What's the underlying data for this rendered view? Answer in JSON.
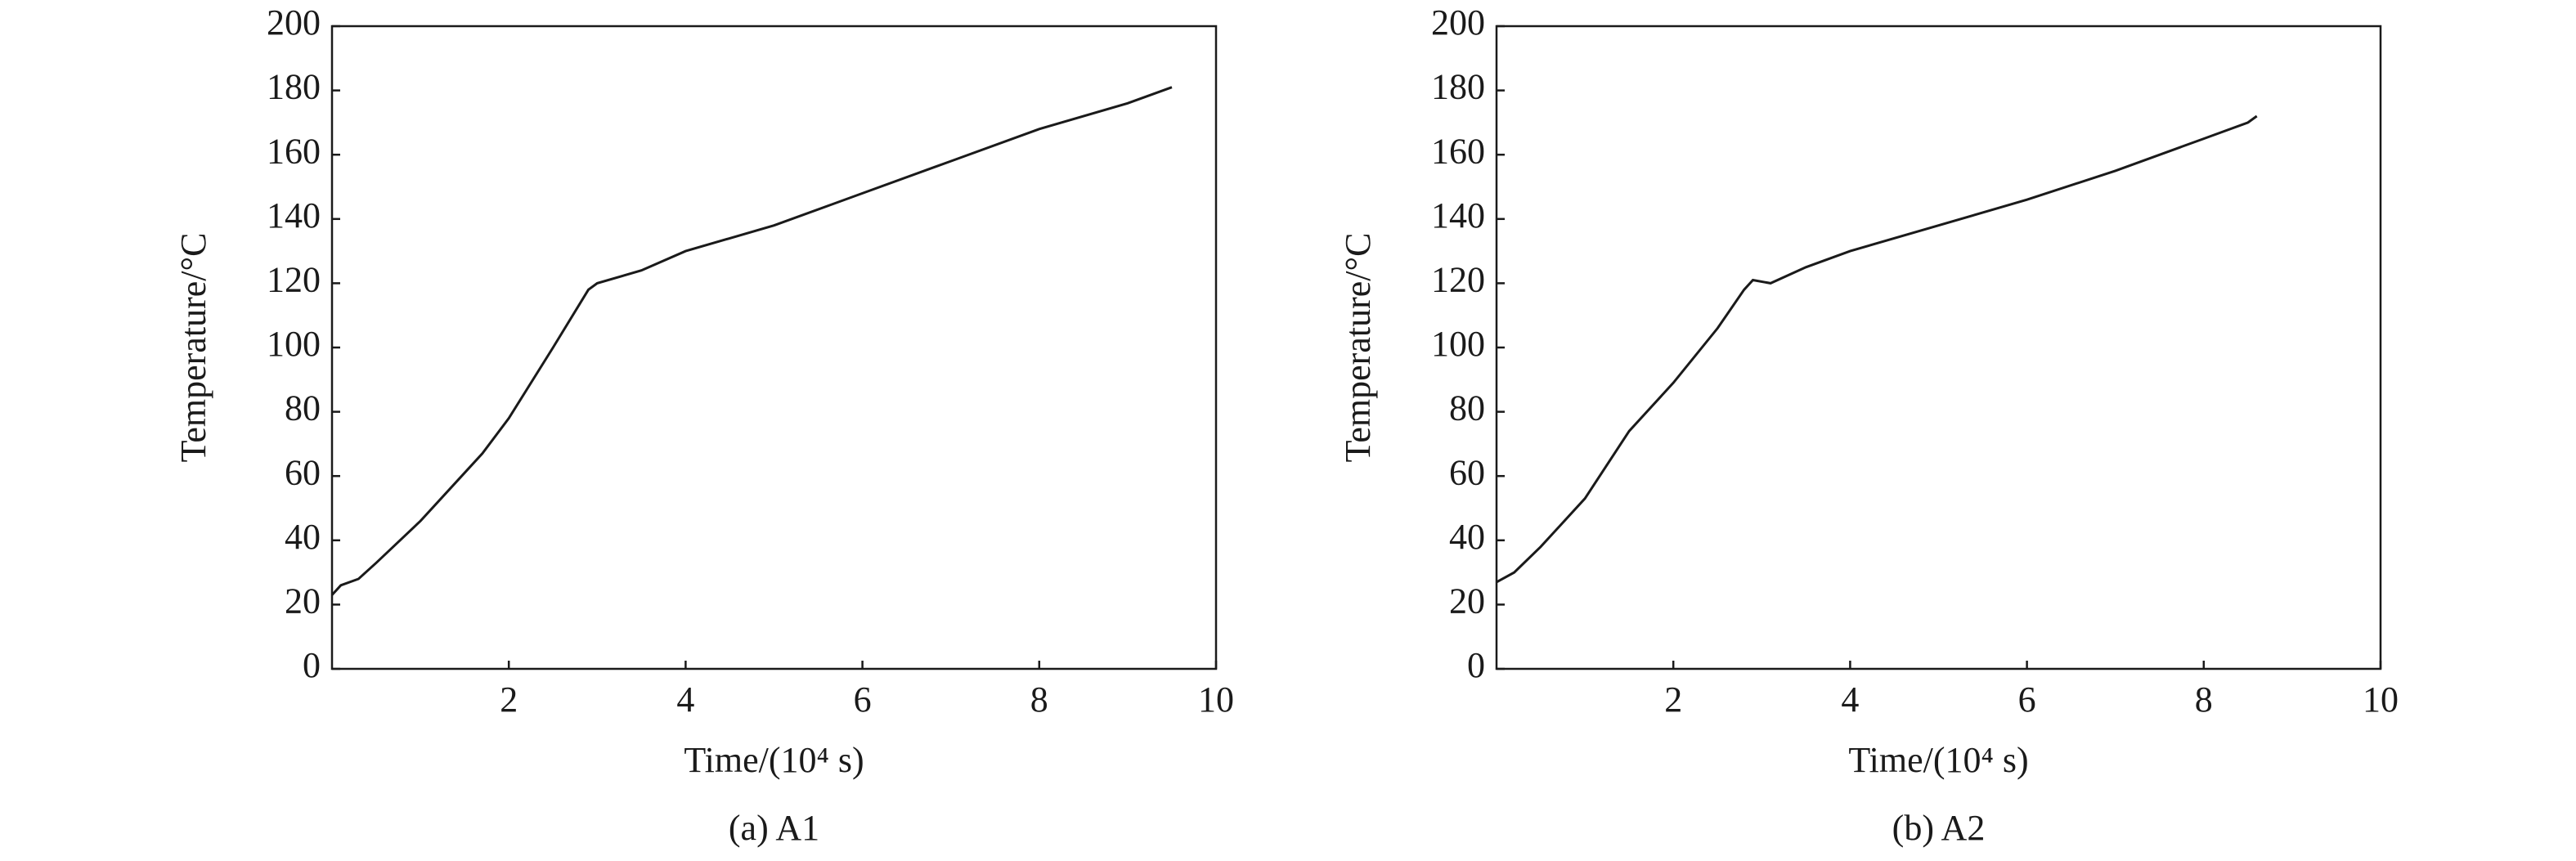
{
  "chart_data": [
    {
      "type": "line",
      "caption": "(a) A1",
      "xlabel": "Time/(10⁴ s)",
      "ylabel": "Temperature/°C",
      "color": "#1a1a1a",
      "xlim": [
        0,
        10
      ],
      "xticks": [
        2,
        4,
        6,
        8,
        10
      ],
      "ylim": [
        0,
        200
      ],
      "yticks": [
        0,
        20,
        40,
        60,
        80,
        100,
        120,
        140,
        160,
        180,
        200
      ],
      "x": [
        0,
        0.1,
        0.3,
        0.5,
        1,
        1.5,
        1.7,
        2,
        2.5,
        2.9,
        3,
        3.5,
        4,
        5,
        6,
        7,
        8,
        9,
        9.5
      ],
      "values": [
        23,
        26,
        28,
        33,
        46,
        61,
        67,
        78,
        100,
        118,
        120,
        124,
        130,
        138,
        148,
        158,
        168,
        176,
        181
      ]
    },
    {
      "type": "line",
      "caption": "(b) A2",
      "xlabel": "Time/(10⁴ s)",
      "ylabel": "Temperature/°C",
      "color": "#1a1a1a",
      "xlim": [
        0,
        10
      ],
      "xticks": [
        2,
        4,
        6,
        8,
        10
      ],
      "ylim": [
        0,
        200
      ],
      "yticks": [
        0,
        20,
        40,
        60,
        80,
        100,
        120,
        140,
        160,
        180,
        200
      ],
      "x": [
        0,
        0.2,
        0.5,
        1,
        1.5,
        2,
        2.5,
        2.8,
        2.9,
        3.1,
        3.5,
        4,
        5,
        6,
        7,
        8,
        8.5,
        8.6
      ],
      "values": [
        27,
        30,
        38,
        53,
        74,
        89,
        106,
        118,
        121,
        120,
        125,
        130,
        138,
        146,
        155,
        165,
        170,
        172
      ]
    }
  ]
}
